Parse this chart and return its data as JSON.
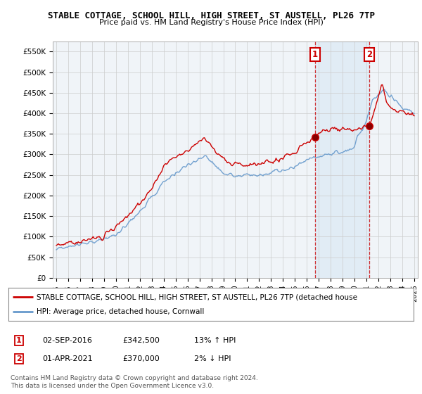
{
  "title": "STABLE COTTAGE, SCHOOL HILL, HIGH STREET, ST AUSTELL, PL26 7TP",
  "subtitle": "Price paid vs. HM Land Registry's House Price Index (HPI)",
  "ylabel_ticks": [
    "£0",
    "£50K",
    "£100K",
    "£150K",
    "£200K",
    "£250K",
    "£300K",
    "£350K",
    "£400K",
    "£450K",
    "£500K",
    "£550K"
  ],
  "ytick_values": [
    0,
    50000,
    100000,
    150000,
    200000,
    250000,
    300000,
    350000,
    400000,
    450000,
    500000,
    550000
  ],
  "ylim": [
    0,
    575000
  ],
  "xlim_start": 1994.7,
  "xlim_end": 2025.3,
  "red_line_label": "STABLE COTTAGE, SCHOOL HILL, HIGH STREET, ST AUSTELL, PL26 7TP (detached house",
  "blue_line_label": "HPI: Average price, detached house, Cornwall",
  "sale1_x": 2016.67,
  "sale1_y": 342500,
  "sale2_x": 2021.25,
  "sale2_y": 370000,
  "sale1_date": "02-SEP-2016",
  "sale1_price": "£342,500",
  "sale1_hpi": "13% ↑ HPI",
  "sale2_date": "01-APR-2021",
  "sale2_price": "£370,000",
  "sale2_hpi": "2% ↓ HPI",
  "footer": "Contains HM Land Registry data © Crown copyright and database right 2024.\nThis data is licensed under the Open Government Licence v3.0.",
  "red_color": "#cc0000",
  "blue_color": "#6699cc",
  "blue_fill_color": "#dce9f5",
  "bg_color": "#ffffff",
  "plot_bg_color": "#f0f4f8",
  "grid_color": "#cccccc",
  "vline_color": "#cc0000",
  "sale_box_color": "#cc0000"
}
